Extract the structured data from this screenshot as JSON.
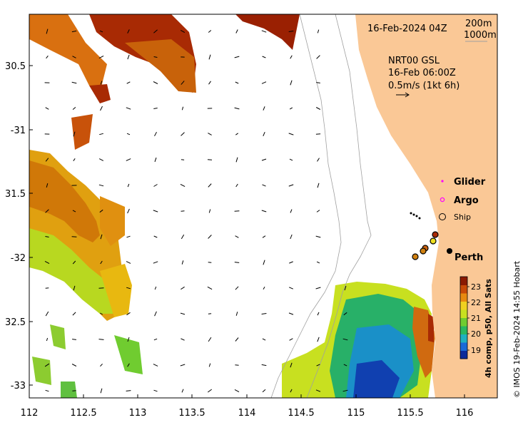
{
  "map": {
    "timestamp": "16-Feb-2024 04Z",
    "isobath_labels": [
      "200m",
      "1000m"
    ],
    "current_product": "NRT00 GSL",
    "current_time": "16-Feb 06:00Z",
    "vector_scale": "0.5m/s (1kt 6h)",
    "lon_ticks": [
      "112",
      "112.5",
      "113",
      "113.5",
      "114",
      "114.5",
      "115",
      "115.5",
      "116"
    ],
    "lat_ticks": [
      "30.5",
      "-31",
      "31.5",
      "-32",
      "32.5",
      "-33"
    ],
    "legend": {
      "glider": "Glider",
      "argo": "Argo",
      "ship": "Ship",
      "city": "Perth"
    },
    "colorbar": {
      "title": "4h comp, p50, All Sats",
      "labels": [
        "23",
        "22",
        "21",
        "20",
        "19"
      ],
      "colors": [
        "#0a2a9a",
        "#1a6ad8",
        "#20b0c0",
        "#2ab860",
        "#70cc30",
        "#c8e020",
        "#f0d020",
        "#e88a10",
        "#c84a08",
        "#8a1a02"
      ]
    },
    "credit": "© IMOS 19-Feb-2024 14:55 Hobart"
  },
  "colors": {
    "land": "#fac896",
    "glider": "#ff00ff",
    "argo": "#ff00ff"
  },
  "icons": [
    "glider-marker-icon",
    "argo-marker-icon",
    "ship-marker-icon",
    "city-marker-icon"
  ]
}
